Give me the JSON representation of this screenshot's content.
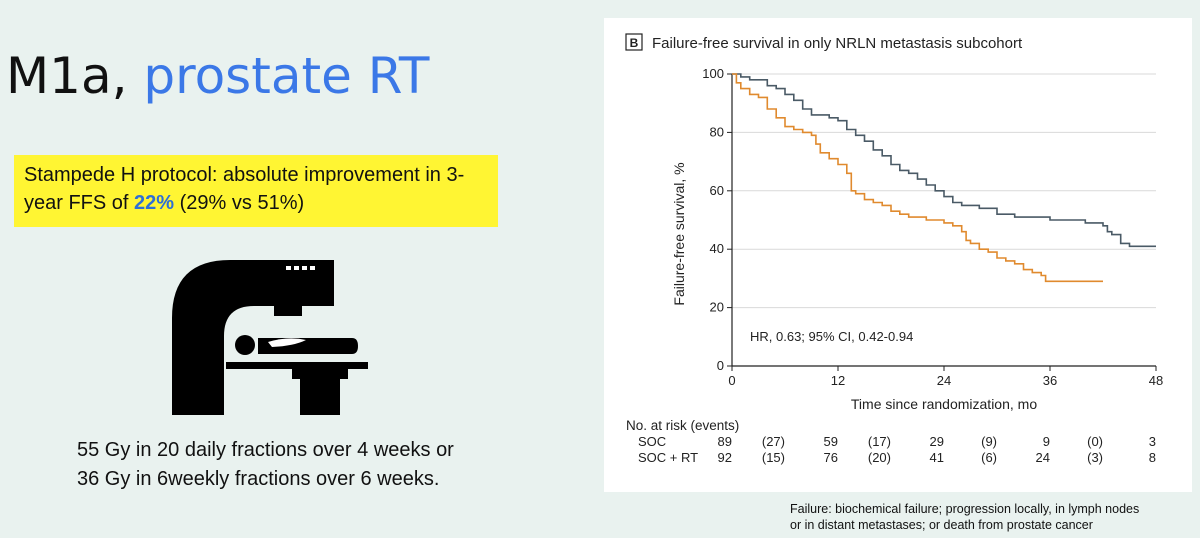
{
  "slide": {
    "title_main": "M1a,",
    "title_accent": "prostate RT",
    "highlight_prefix": "Stampede H protocol: absolute improvement in 3-year FFS of",
    "highlight_pct": "22%",
    "highlight_suffix": "(29% vs 51%)",
    "dose_line1": "55 Gy in 20 daily fractions over 4 weeks or",
    "dose_line2": "36 Gy in 6weekly fractions over 6 weeks.",
    "footnote_line1": "Failure: biochemical failure; progression locally, in lymph nodes",
    "footnote_line2": "or in distant metastases; or death from prostate cancer",
    "machine_icon": "radiotherapy-machine-icon"
  },
  "chart_data": {
    "type": "line",
    "panel_letter": "B",
    "title": "Failure-free survival in only NRLN metastasis subcohort",
    "xlabel": "Time since randomization, mo",
    "ylabel": "Failure-free survival, %",
    "xlim": [
      0,
      48
    ],
    "ylim": [
      0,
      100
    ],
    "xticks": [
      0,
      12,
      24,
      36,
      48
    ],
    "yticks": [
      0,
      20,
      40,
      60,
      80,
      100
    ],
    "grid": "horizontal",
    "annotation": "HR, 0.63; 95% CI, 0.42-0.94",
    "series": [
      {
        "color": "#4a5a66",
        "points": [
          [
            0,
            100
          ],
          [
            1,
            99
          ],
          [
            2,
            98
          ],
          [
            3,
            98
          ],
          [
            4,
            96
          ],
          [
            5,
            95
          ],
          [
            6,
            93
          ],
          [
            7,
            91
          ],
          [
            8,
            88
          ],
          [
            9,
            86
          ],
          [
            10,
            86
          ],
          [
            11,
            85
          ],
          [
            12,
            84
          ],
          [
            13,
            81
          ],
          [
            14,
            79
          ],
          [
            15,
            77
          ],
          [
            16,
            74
          ],
          [
            17,
            72
          ],
          [
            18,
            69
          ],
          [
            19,
            67
          ],
          [
            20,
            66
          ],
          [
            21,
            64
          ],
          [
            22,
            62
          ],
          [
            23,
            60
          ],
          [
            24,
            58
          ],
          [
            25,
            56
          ],
          [
            26,
            55
          ],
          [
            28,
            54
          ],
          [
            30,
            52
          ],
          [
            32,
            51
          ],
          [
            34,
            51
          ],
          [
            36,
            50
          ],
          [
            38,
            50
          ],
          [
            40,
            49
          ],
          [
            42,
            48
          ],
          [
            42.5,
            46
          ],
          [
            43,
            45
          ],
          [
            44,
            42
          ],
          [
            45,
            41
          ],
          [
            48,
            41
          ]
        ]
      },
      {
        "color": "#e08a2e",
        "points": [
          [
            0,
            100
          ],
          [
            0.5,
            97
          ],
          [
            1,
            95
          ],
          [
            2,
            93
          ],
          [
            3,
            92
          ],
          [
            4,
            88
          ],
          [
            5,
            85
          ],
          [
            6,
            82
          ],
          [
            7,
            81
          ],
          [
            8,
            80
          ],
          [
            9,
            79
          ],
          [
            9.5,
            76
          ],
          [
            10,
            73
          ],
          [
            11,
            71
          ],
          [
            12,
            69
          ],
          [
            13,
            66
          ],
          [
            13.5,
            60
          ],
          [
            14,
            59
          ],
          [
            15,
            57
          ],
          [
            16,
            56
          ],
          [
            17,
            55
          ],
          [
            18,
            53
          ],
          [
            19,
            52
          ],
          [
            20,
            51
          ],
          [
            22,
            50
          ],
          [
            24,
            49
          ],
          [
            25,
            48
          ],
          [
            26,
            46
          ],
          [
            26.5,
            43
          ],
          [
            27,
            42
          ],
          [
            28,
            40
          ],
          [
            29,
            39
          ],
          [
            30,
            37
          ],
          [
            31,
            36
          ],
          [
            32,
            35
          ],
          [
            33,
            33
          ],
          [
            34,
            32
          ],
          [
            35,
            31
          ],
          [
            35.5,
            29
          ],
          [
            40,
            29
          ],
          [
            42,
            29
          ]
        ]
      }
    ],
    "risk_table": {
      "header": "No. at risk (events)",
      "columns": [
        "0",
        "",
        "12",
        "",
        "24",
        "",
        "36",
        "",
        "48"
      ],
      "rows": [
        {
          "label": "SOC",
          "values": [
            "89",
            "(27)",
            "59",
            "(17)",
            "29",
            "(9)",
            "9",
            "(0)",
            "3"
          ]
        },
        {
          "label": "SOC + RT",
          "values": [
            "92",
            "(15)",
            "76",
            "(20)",
            "41",
            "(6)",
            "24",
            "(3)",
            "8"
          ]
        }
      ]
    }
  }
}
